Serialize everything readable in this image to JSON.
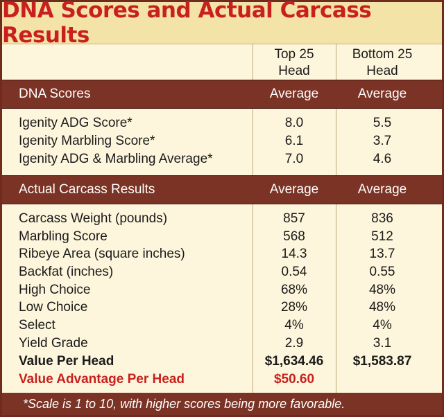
{
  "chart_data": {
    "type": "table",
    "title": "DNA Scores and Actual Carcass Results",
    "columns": [
      {
        "line1": "Top 25",
        "line2": "Head"
      },
      {
        "line1": "Bottom 25",
        "line2": "Head"
      }
    ],
    "sections": [
      {
        "name": "DNA Scores",
        "col1": "Average",
        "col2": "Average",
        "rows": [
          {
            "label": "Igenity ADG Score*",
            "top": "8.0",
            "bottom": "5.5"
          },
          {
            "label": "Igenity Marbling Score*",
            "top": "6.1",
            "bottom": "3.7"
          },
          {
            "label": "Igenity ADG & Marbling Average*",
            "top": "7.0",
            "bottom": "4.6"
          }
        ]
      },
      {
        "name": "Actual Carcass Results",
        "col1": "Average",
        "col2": "Average",
        "rows": [
          {
            "label": "Carcass Weight (pounds)",
            "top": "857",
            "bottom": "836"
          },
          {
            "label": "Marbling Score",
            "top": "568",
            "bottom": "512"
          },
          {
            "label": "Ribeye Area (square inches)",
            "top": "14.3",
            "bottom": "13.7"
          },
          {
            "label": "Backfat (inches)",
            "top": "0.54",
            "bottom": "0.55"
          },
          {
            "label": "High Choice",
            "top": "68%",
            "bottom": "48%"
          },
          {
            "label": "Low Choice",
            "top": "28%",
            "bottom": "48%"
          },
          {
            "label": "Select",
            "top": "4%",
            "bottom": "4%"
          },
          {
            "label": "Yield Grade",
            "top": "2.9",
            "bottom": "3.1"
          },
          {
            "label": "Value Per Head",
            "top": "$1,634.46",
            "bottom": "$1,583.87"
          },
          {
            "label": "Value Advantage Per Head",
            "top": "$50.60",
            "bottom": ""
          }
        ]
      }
    ],
    "footnote": "*Scale is 1 to 10, with higher scores being more favorable."
  },
  "colors": {
    "title_red": "#c8201e",
    "band_brown": "#7a3325",
    "background": "#fdf6dc"
  }
}
